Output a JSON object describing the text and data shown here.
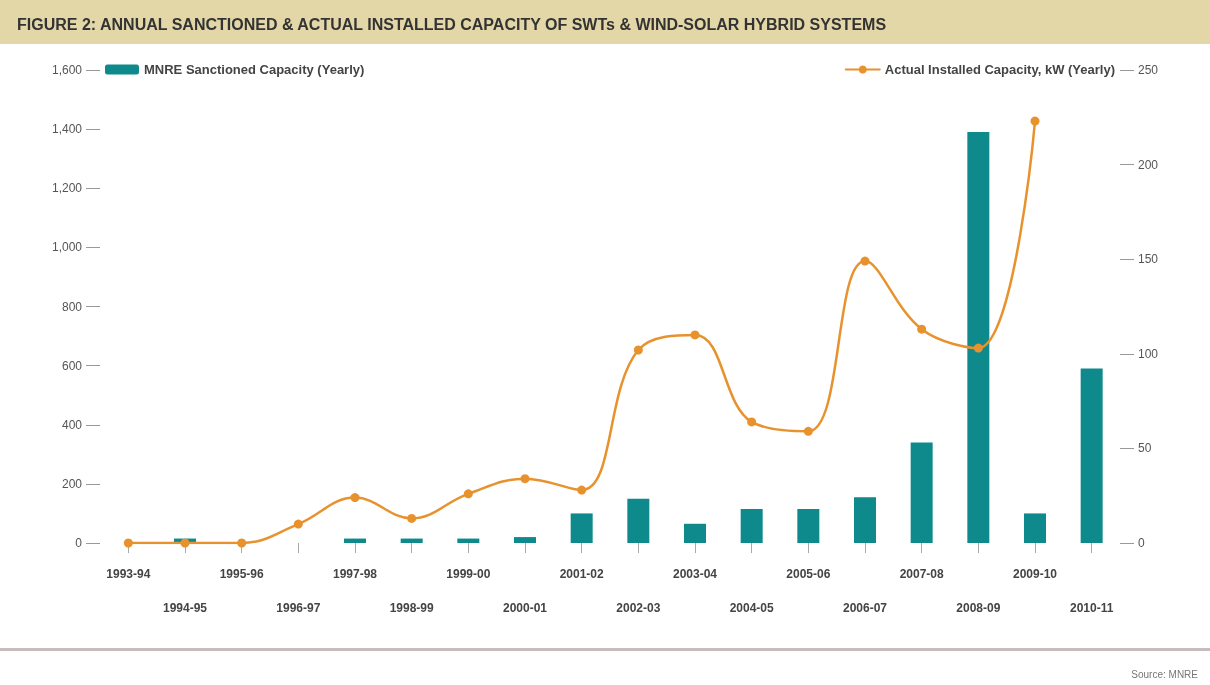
{
  "chart_data": {
    "type": "bar",
    "title": "FIGURE 2: ANNUAL SANCTIONED & ACTUAL INSTALLED CAPACITY OF SWTs & WIND-SOLAR HYBRID SYSTEMS",
    "categories": [
      "1993-94",
      "1994-95",
      "1995-96",
      "1996-97",
      "1997-98",
      "1998-99",
      "1999-00",
      "2000-01",
      "2001-02",
      "2002-03",
      "2003-04",
      "2004-05",
      "2005-06",
      "2006-07",
      "2007-08",
      "2008-09",
      "2009-10",
      "2010-11"
    ],
    "series": [
      {
        "name": "MNRE Sanctioned Capacity (Yearly)",
        "color": "#0e8a8c",
        "values": [
          null,
          15,
          null,
          null,
          15,
          15,
          15,
          20,
          100,
          150,
          65,
          115,
          115,
          155,
          340,
          1390,
          100,
          590
        ]
      },
      {
        "name": "Actual Installed Capacity, kW (Yearly)",
        "type": "line",
        "axis": "y2",
        "color": "#e8922e",
        "values": [
          0,
          0,
          0,
          10,
          24,
          13,
          26,
          34,
          28,
          102,
          110,
          64,
          59,
          149,
          113,
          103,
          223,
          null
        ]
      }
    ],
    "ylim": [
      0,
      1600
    ],
    "yticks": [
      0,
      200,
      400,
      600,
      800,
      {
        "value": 1000,
        "label": "1,000"
      },
      {
        "value": 1200,
        "label": "1,200"
      },
      {
        "value": 1400,
        "label": "1,400"
      },
      {
        "value": 1600,
        "label": "1,600"
      }
    ],
    "y2lim": [
      0,
      250
    ],
    "y2ticks": [
      0,
      50,
      100,
      150,
      200,
      250
    ],
    "grid": false,
    "legend": "top",
    "marker": "circle",
    "line_style": "solid",
    "annotations": [
      "Source: MNRE"
    ]
  }
}
